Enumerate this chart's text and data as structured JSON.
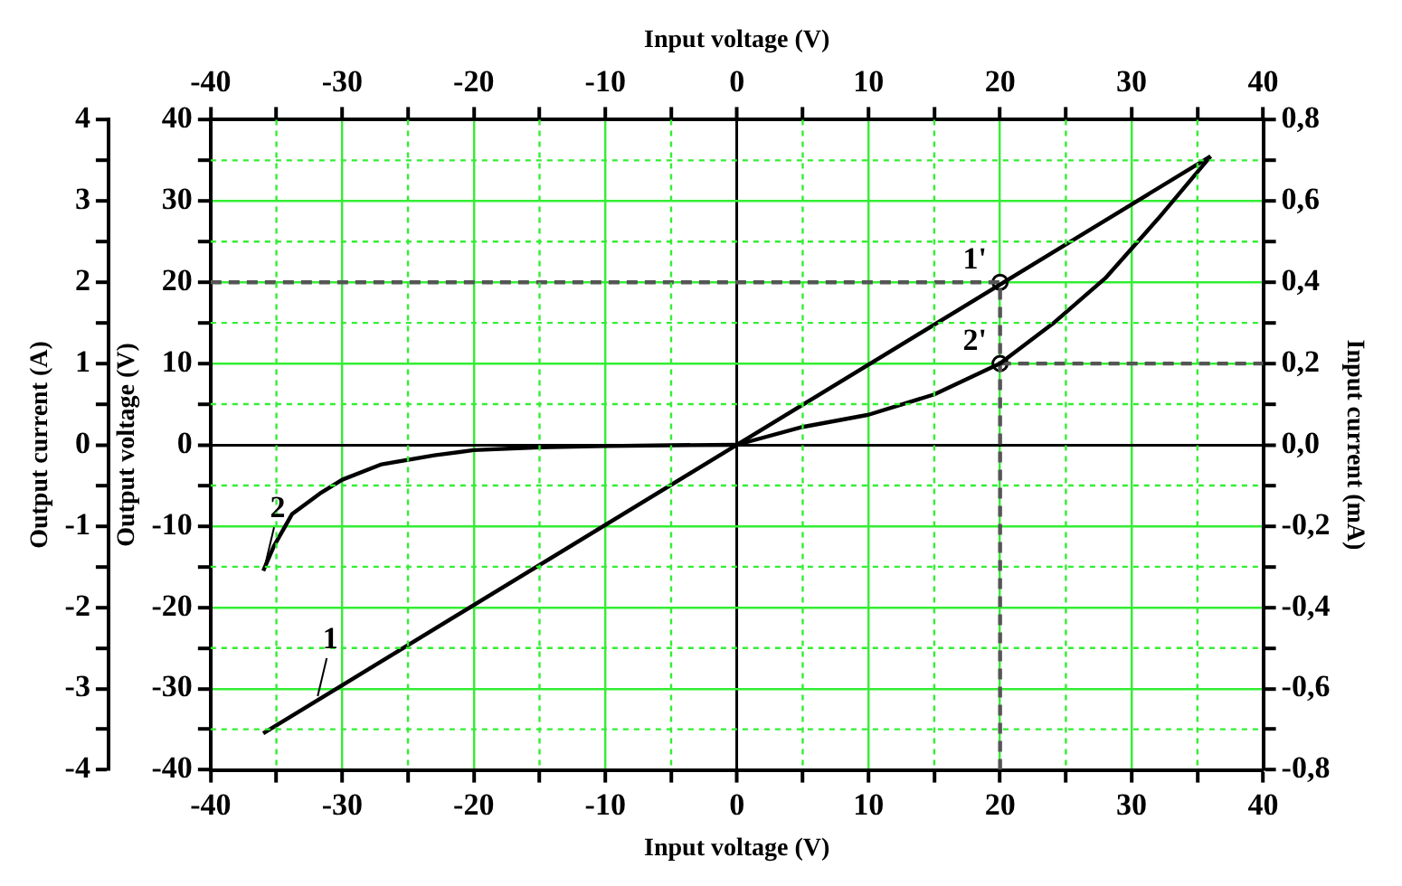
{
  "chart_data": {
    "type": "line",
    "xlabel": "Input voltage (V)",
    "x2label": "Input voltage (V)",
    "ylabel": "Output voltage (V)",
    "y3label": "Output current (A)",
    "y2label": "Input current (mA)",
    "xlim": [
      -40,
      40
    ],
    "xticks": [
      -40,
      {
        "value": -35,
        "label": null
      },
      -30,
      {
        "value": -25,
        "label": null
      },
      -20,
      {
        "value": -15,
        "label": null
      },
      -10,
      {
        "value": -5,
        "label": null
      },
      0,
      {
        "value": 5,
        "label": null
      },
      10,
      {
        "value": 15,
        "label": null
      },
      20,
      {
        "value": 25,
        "label": null
      },
      30,
      {
        "value": 35,
        "label": null
      },
      40
    ],
    "x2lim": [
      -40,
      40
    ],
    "x2ticks": [
      -40,
      {
        "value": -35,
        "label": null
      },
      -30,
      {
        "value": -25,
        "label": null
      },
      -20,
      {
        "value": -15,
        "label": null
      },
      -10,
      {
        "value": -5,
        "label": null
      },
      0,
      {
        "value": 5,
        "label": null
      },
      10,
      {
        "value": 15,
        "label": null
      },
      20,
      {
        "value": 25,
        "label": null
      },
      30,
      {
        "value": 35,
        "label": null
      },
      40
    ],
    "ylim": [
      -40,
      40
    ],
    "yticks": [
      -40,
      {
        "value": -35,
        "label": null
      },
      -30,
      {
        "value": -25,
        "label": null
      },
      -20,
      {
        "value": -15,
        "label": null
      },
      -10,
      {
        "value": -5,
        "label": null
      },
      0,
      {
        "value": 5,
        "label": null
      },
      10,
      {
        "value": 15,
        "label": null
      },
      20,
      {
        "value": 25,
        "label": null
      },
      30,
      {
        "value": 35,
        "label": null
      },
      40
    ],
    "y3lim": [
      -4,
      4
    ],
    "y3ticks": [
      -4,
      {
        "value": -3.5,
        "label": null
      },
      -3,
      {
        "value": -2.5,
        "label": null
      },
      -2,
      {
        "value": -1.5,
        "label": null
      },
      -1,
      {
        "value": -0.5,
        "label": null
      },
      0,
      {
        "value": 0.5,
        "label": null
      },
      1,
      {
        "value": 1.5,
        "label": null
      },
      2,
      {
        "value": 2.5,
        "label": null
      },
      3,
      {
        "value": 3.5,
        "label": null
      },
      4
    ],
    "y2lim": [
      -0.8,
      0.8
    ],
    "y2ticks": [
      {
        "value": -0.8,
        "label": "-0,8"
      },
      {
        "value": -0.7,
        "label": null
      },
      {
        "value": -0.6,
        "label": "-0,6"
      },
      {
        "value": -0.5,
        "label": null
      },
      {
        "value": -0.4,
        "label": "-0,4"
      },
      {
        "value": -0.3,
        "label": null
      },
      {
        "value": -0.2,
        "label": "-0,2"
      },
      {
        "value": -0.1,
        "label": null
      },
      {
        "value": 0,
        "label": "0,0"
      },
      {
        "value": 0.1,
        "label": null
      },
      {
        "value": 0.2,
        "label": "0,2"
      },
      {
        "value": 0.3,
        "label": null
      },
      {
        "value": 0.4,
        "label": "0,4"
      },
      {
        "value": 0.5,
        "label": null
      },
      {
        "value": 0.6,
        "label": "0,6"
      },
      {
        "value": 0.7,
        "label": null
      },
      {
        "value": 0.8,
        "label": "0,8"
      }
    ],
    "grid": true,
    "legend": false,
    "series": [
      {
        "type": "line",
        "color": "#000000",
        "marker": "none",
        "line_style": "solid",
        "x": [
          -36,
          36
        ],
        "values": [
          -35.5,
          35.5
        ]
      },
      {
        "type": "line",
        "color": "#000000",
        "marker": "none",
        "line_style": "solid",
        "axis": "y2",
        "x": [
          -36,
          -35.2,
          -33.8,
          -31.7,
          -30,
          -27,
          -23,
          -20,
          -15,
          -10,
          -5,
          0,
          5,
          10,
          15,
          20,
          24,
          28,
          32,
          36
        ],
        "values": [
          -0.31,
          -0.25,
          -0.17,
          -0.12,
          -0.086,
          -0.048,
          -0.026,
          -0.013,
          -0.006,
          -0.003,
          -0.001,
          0,
          0.044,
          0.074,
          0.124,
          0.2,
          0.298,
          0.41,
          0.556,
          0.71
        ]
      },
      {
        "type": "line",
        "color": "#555555",
        "marker": "none",
        "line_style": "dashed",
        "x": [
          -40,
          20
        ],
        "values": [
          20,
          20
        ]
      },
      {
        "type": "line",
        "color": "#555555",
        "marker": "none",
        "line_style": "dashed",
        "x": [
          20,
          20
        ],
        "values": [
          -40,
          20
        ]
      },
      {
        "type": "line",
        "color": "#555555",
        "marker": "none",
        "line_style": "dashed",
        "axis": "y2",
        "x": [
          20,
          40
        ],
        "values": [
          0.2,
          0.2
        ]
      },
      {
        "type": "scatter",
        "color": "#000000",
        "marker": "circle",
        "x": [
          20,
          20
        ],
        "values": [
          20,
          10
        ]
      }
    ],
    "annotations": [
      {
        "text": "1",
        "x": -32,
        "y": -31.6
      },
      {
        "text": "2",
        "x": -36,
        "y": -15.5
      },
      {
        "text": "1'",
        "x": 20,
        "y": 20
      },
      {
        "text": "2'",
        "x": 20,
        "y": 10
      }
    ]
  }
}
